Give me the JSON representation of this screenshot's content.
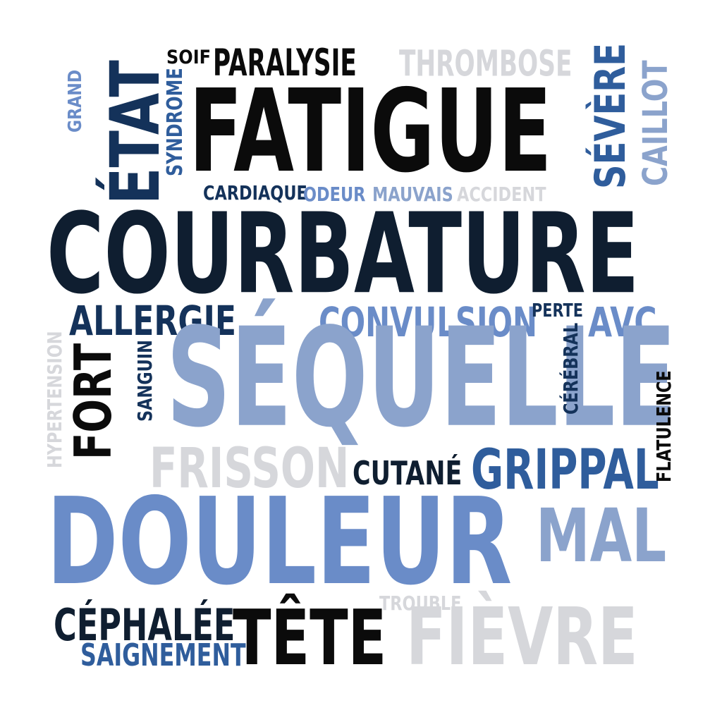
{
  "words": {
    "soif": "SOIF",
    "paralysie": "PARALYSIE",
    "thrombose": "THROMBOSE",
    "grand": "GRAND",
    "etat": "ÉTAT",
    "syndrome": "SYNDROME",
    "fatigue": "FATIGUE",
    "severe": "SÉVÈRE",
    "caillot": "CAILLOT",
    "cardiaque": "CARDIAQUE",
    "odeur": "ODEUR",
    "mauvais": "MAUVAIS",
    "accident": "ACCIDENT",
    "courbature": "COURBATURE",
    "allergie": "ALLERGIE",
    "convulsion": "CONVULSION",
    "perte": "PERTE",
    "avc": "AVC",
    "hypertension": "HYPERTENSION",
    "fort": "FORT",
    "sanguin": "SANGUIN",
    "sequelle": "SÉQUELLE",
    "cerebral": "CÉRÉBRAL",
    "flatulence": "FLATULENCE",
    "frisson": "FRISSON",
    "cutane": "CUTANÉ",
    "grippal": "GRIPPAL",
    "douleur": "DOULEUR",
    "mal": "MAL",
    "trouble": "TROUBLE",
    "cephalee": "CÉPHALÉE",
    "tete": "TÊTE",
    "fievre": "FIÈVRE",
    "saignement": "SAIGNEMENT"
  },
  "colors": {
    "black": "#0b0b0b",
    "navy": "#0f1e30",
    "dark_blue": "#14325a",
    "mid_blue": "#2f5d9c",
    "blue": "#6a8cc8",
    "light_blue": "#8ba3cc",
    "light_grey": "#d6d7db"
  }
}
